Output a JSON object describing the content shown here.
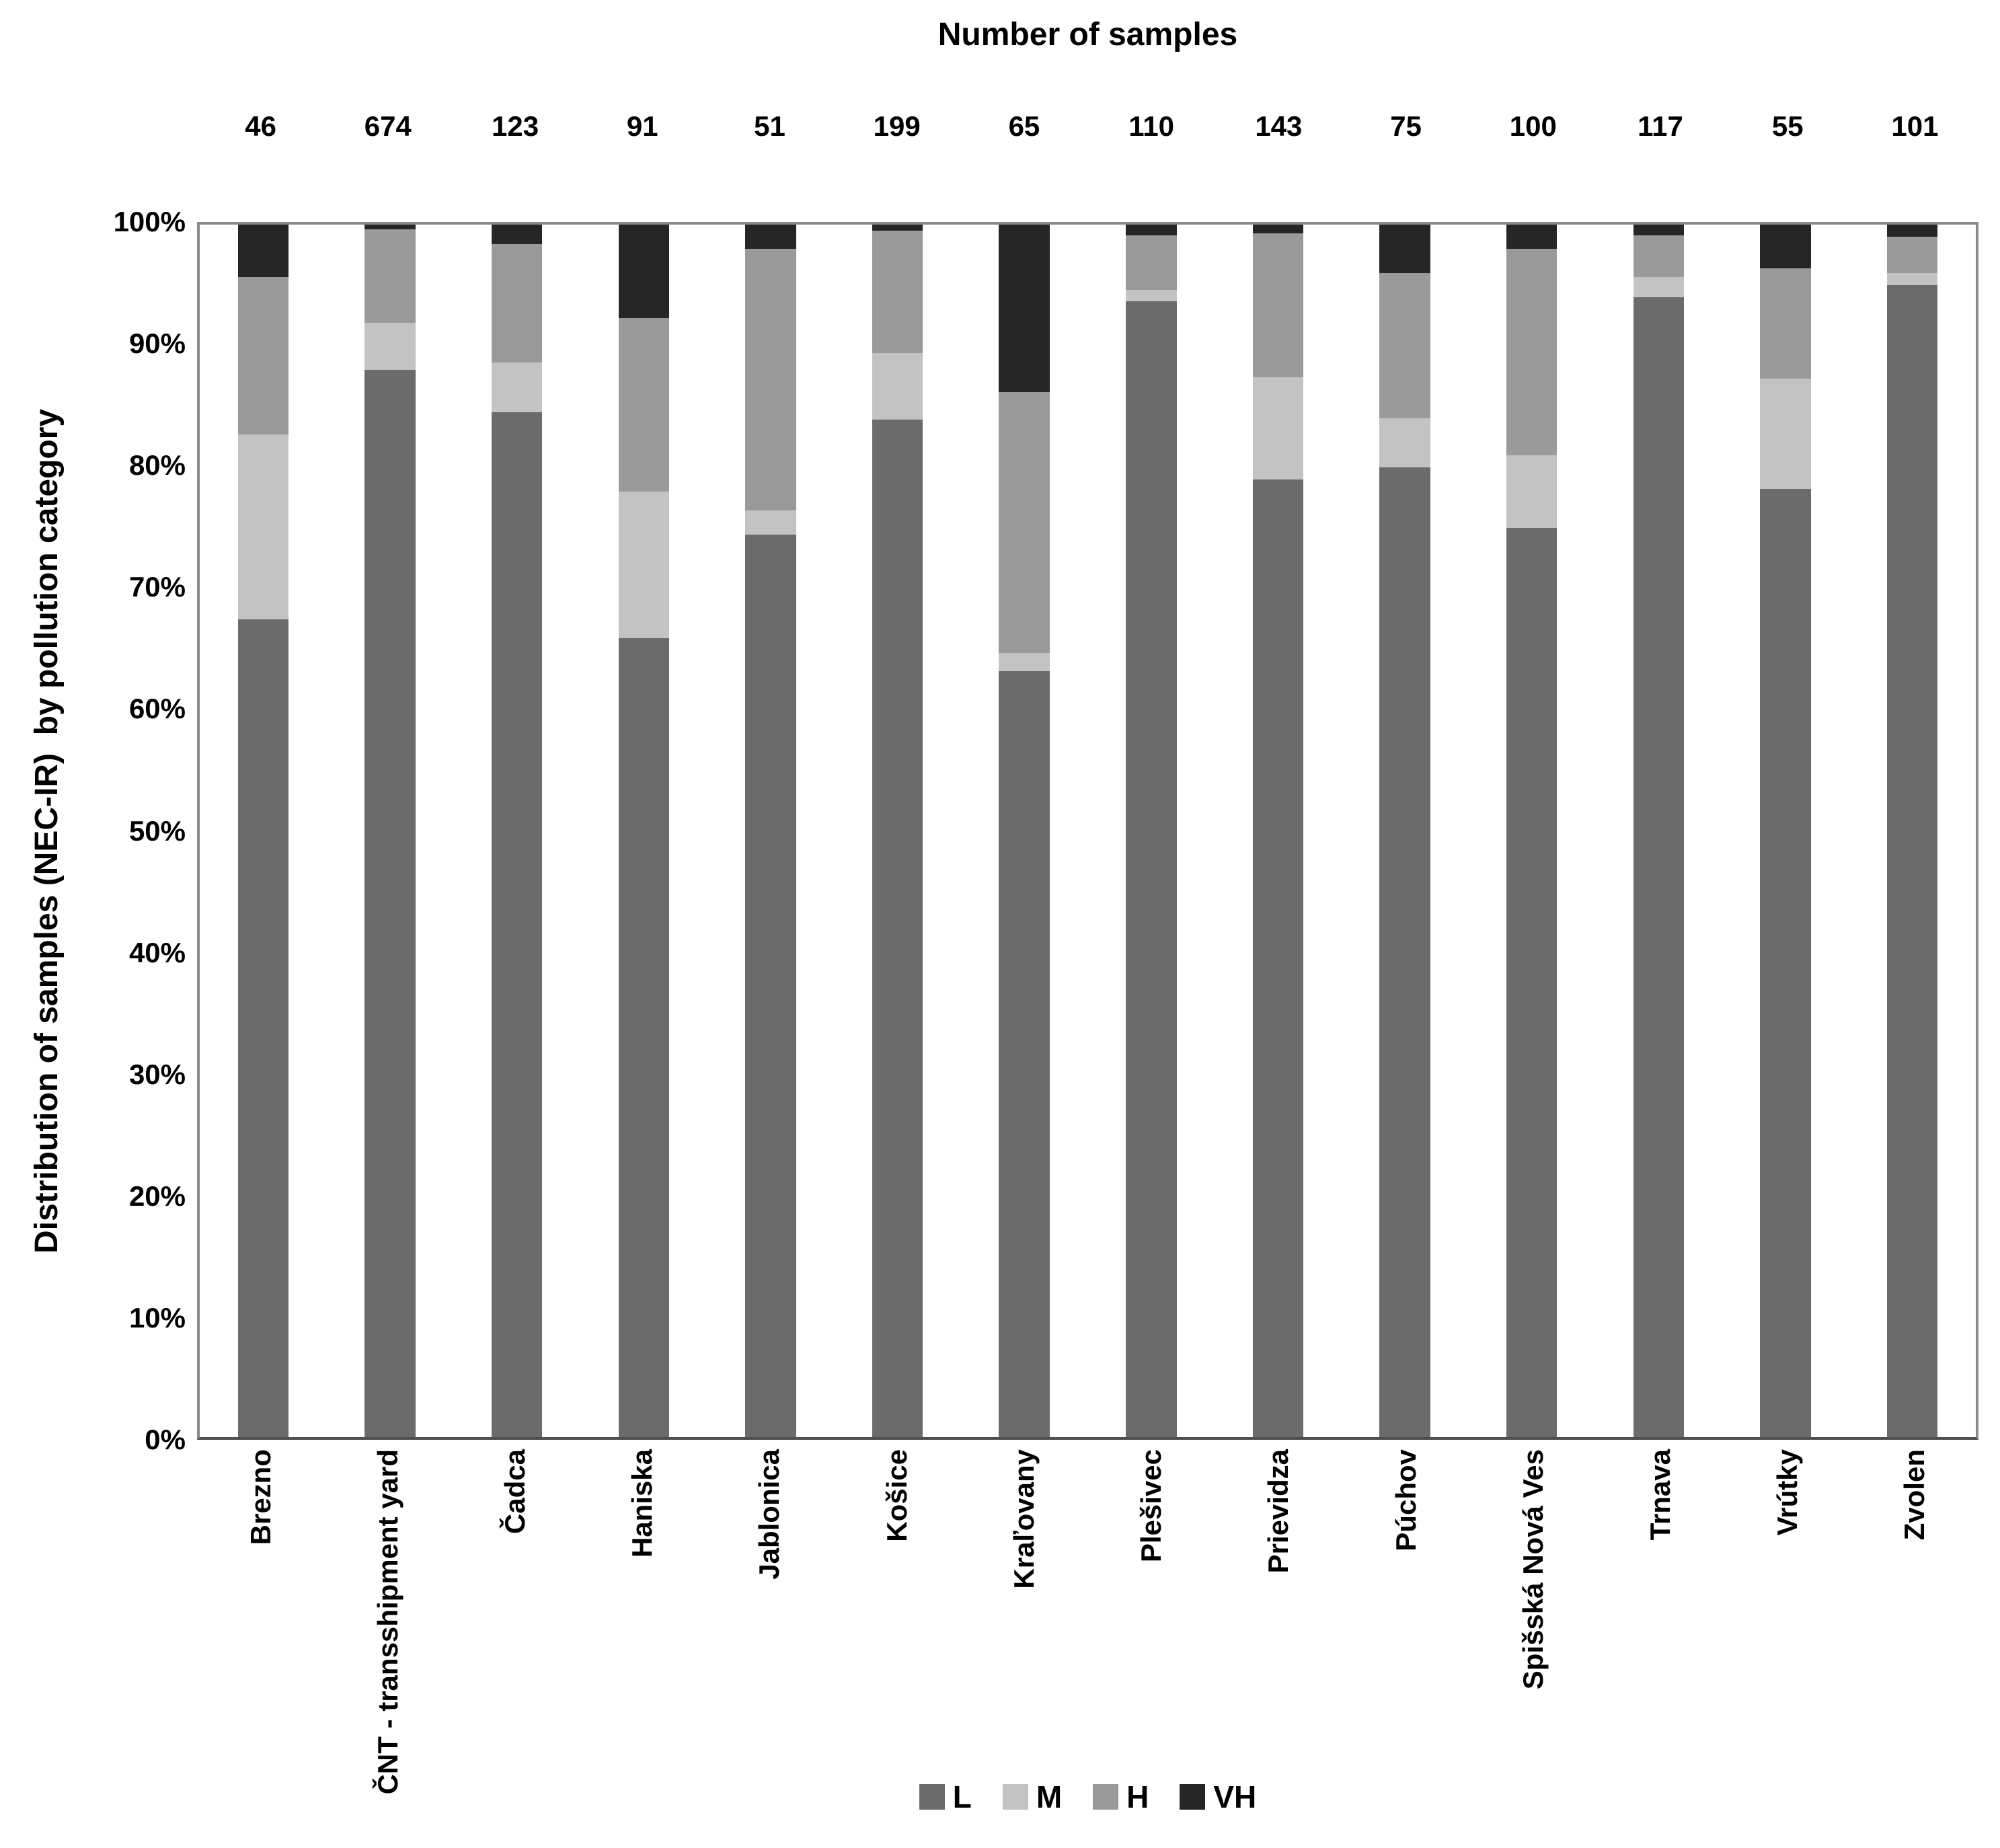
{
  "page": {
    "background": "#ffffff"
  },
  "top_title": "Number of samples",
  "y_axis_title": "Distribution of samples (NEC-IR)  by pollution category",
  "chart_data": {
    "type": "bar",
    "stacked": true,
    "percent_stacked": true,
    "title": "Number of samples",
    "ylabel": "Distribution of samples (NEC-IR)  by pollution category",
    "xlabel": "",
    "ylim": [
      0,
      100
    ],
    "grid": false,
    "legend_position": "bottom",
    "y_ticks": [
      "0%",
      "10%",
      "20%",
      "30%",
      "40%",
      "50%",
      "60%",
      "70%",
      "80%",
      "90%",
      "100%"
    ],
    "categories": [
      "Brezno",
      "ČNT - transshipment yard",
      "Čadca",
      "Haniska",
      "Jablonica",
      "Košice",
      "Kraľovany",
      "Plešivec",
      "Prievidza",
      "Púchov",
      "Spišská Nová Ves",
      "Trnava",
      "Vrútky",
      "Zvolen"
    ],
    "sample_counts": [
      46,
      674,
      123,
      91,
      51,
      199,
      65,
      110,
      143,
      75,
      100,
      117,
      55,
      101
    ],
    "series": [
      {
        "name": "L",
        "color": "#6b6b6b",
        "values": [
          67.4,
          88.0,
          84.6,
          65.9,
          74.5,
          83.9,
          63.1,
          93.6,
          79.0,
          80.0,
          75.0,
          94.0,
          78.2,
          95.0
        ]
      },
      {
        "name": "M",
        "color": "#c3c3c3",
        "values": [
          15.2,
          3.9,
          4.1,
          12.1,
          2.0,
          5.5,
          1.5,
          0.9,
          8.4,
          4.0,
          6.0,
          1.7,
          9.1,
          1.0
        ]
      },
      {
        "name": "H",
        "color": "#9a9a9a",
        "values": [
          13.0,
          7.7,
          9.8,
          14.3,
          21.6,
          10.1,
          21.5,
          4.5,
          11.9,
          12.0,
          17.0,
          3.4,
          9.1,
          3.0
        ]
      },
      {
        "name": "VH",
        "color": "#262626",
        "values": [
          4.3,
          0.4,
          1.6,
          7.7,
          2.0,
          0.5,
          13.8,
          0.9,
          0.7,
          4.0,
          2.0,
          0.9,
          3.6,
          1.0
        ]
      }
    ]
  }
}
